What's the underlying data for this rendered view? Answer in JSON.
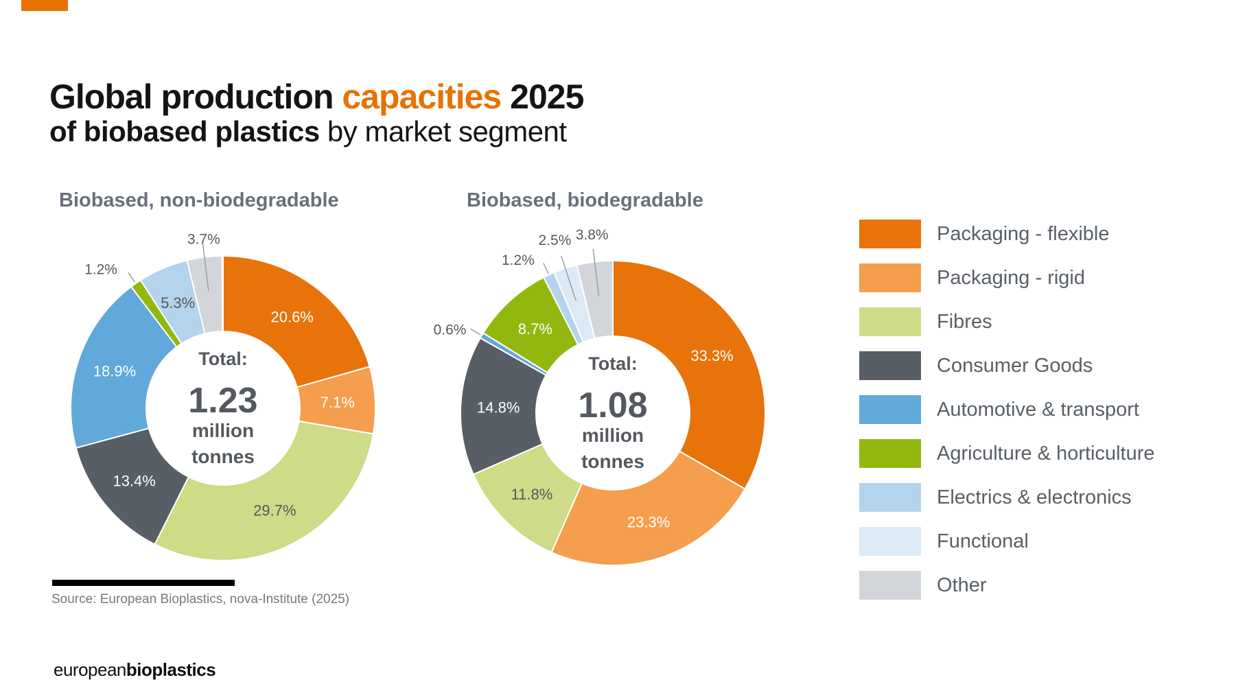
{
  "page": {
    "title": {
      "line1_prefix": "Global production ",
      "line1_highlight": "capacities",
      "line1_suffix": " 2025",
      "line2_bold": "of biobased plastics",
      "line2_regular": " by market segment",
      "highlight_color": "#E87200"
    },
    "source_text": "Source: European Bioplastics, nova-Institute (2025)",
    "logo": {
      "part1": "european",
      "part2": "bioplastics"
    }
  },
  "chart_data": [
    {
      "type": "pie",
      "variant": "donut",
      "title": "Biobased, non-biodegradable",
      "units": "percent of total",
      "center_label": {
        "prefix": "Total:",
        "value": "1.23",
        "unit_line1": "million",
        "unit_line2": "tonnes"
      },
      "segments": [
        {
          "label": "Packaging - flexible",
          "value": 20.6,
          "color": "#E8730B",
          "label_color": "#FFFFFF"
        },
        {
          "label": "Packaging - rigid",
          "value": 7.1,
          "color": "#F49E4E",
          "label_color": "#FFFFFF"
        },
        {
          "label": "Fibres",
          "value": 29.7,
          "color": "#CEDB87",
          "label_color": "#54595F"
        },
        {
          "label": "Consumer Goods",
          "value": 13.4,
          "color": "#575E65",
          "label_color": "#FFFFFF"
        },
        {
          "label": "Automotive & transport",
          "value": 18.9,
          "color": "#61A8DB",
          "label_color": "#FFFFFF"
        },
        {
          "label": "Agriculture & horticulture",
          "value": 1.2,
          "color": "#92B80F",
          "label_color": "#54595F"
        },
        {
          "label": "Electrics & electronics",
          "value": 5.3,
          "color": "#B4D3EC",
          "label_color": "#54595F"
        },
        {
          "label": "Other",
          "value": 3.7,
          "color": "#D2D5D9",
          "label_color": "#54595F"
        }
      ]
    },
    {
      "type": "pie",
      "variant": "donut",
      "title": "Biobased, biodegradable",
      "units": "percent of total",
      "center_label": {
        "prefix": "Total:",
        "value": "1.08",
        "unit_line1": "million",
        "unit_line2": "tonnes"
      },
      "segments": [
        {
          "label": "Packaging - flexible",
          "value": 33.3,
          "color": "#E8730B",
          "label_color": "#FFFFFF"
        },
        {
          "label": "Packaging - rigid",
          "value": 23.3,
          "color": "#F49E4E",
          "label_color": "#FFFFFF"
        },
        {
          "label": "Fibres",
          "value": 11.8,
          "color": "#CEDB87",
          "label_color": "#54595F"
        },
        {
          "label": "Consumer Goods",
          "value": 14.8,
          "color": "#575E65",
          "label_color": "#FFFFFF"
        },
        {
          "label": "Automotive & transport",
          "value": 0.6,
          "color": "#61A8DB",
          "label_color": "#54595F"
        },
        {
          "label": "Agriculture & horticulture",
          "value": 8.7,
          "color": "#92B80F",
          "label_color": "#FFFFFF"
        },
        {
          "label": "Electrics & electronics",
          "value": 1.2,
          "color": "#B4D3EC",
          "label_color": "#54595F"
        },
        {
          "label": "Functional",
          "value": 2.5,
          "color": "#DCE9F6",
          "label_color": "#54595F"
        },
        {
          "label": "Other",
          "value": 3.8,
          "color": "#D2D5D9",
          "label_color": "#54595F"
        }
      ]
    }
  ],
  "legend": {
    "items": [
      {
        "label": "Packaging - flexible",
        "color": "#E8730B"
      },
      {
        "label": "Packaging - rigid",
        "color": "#F49E4E"
      },
      {
        "label": "Fibres",
        "color": "#CEDB87"
      },
      {
        "label": "Consumer Goods",
        "color": "#575E65"
      },
      {
        "label": "Automotive & transport",
        "color": "#61A8DB"
      },
      {
        "label": "Agriculture & horticulture",
        "color": "#92B80F"
      },
      {
        "label": "Electrics & electronics",
        "color": "#B4D3EC"
      },
      {
        "label": "Functional",
        "color": "#DCE9F6"
      },
      {
        "label": "Other",
        "color": "#D2D5D9"
      }
    ]
  }
}
